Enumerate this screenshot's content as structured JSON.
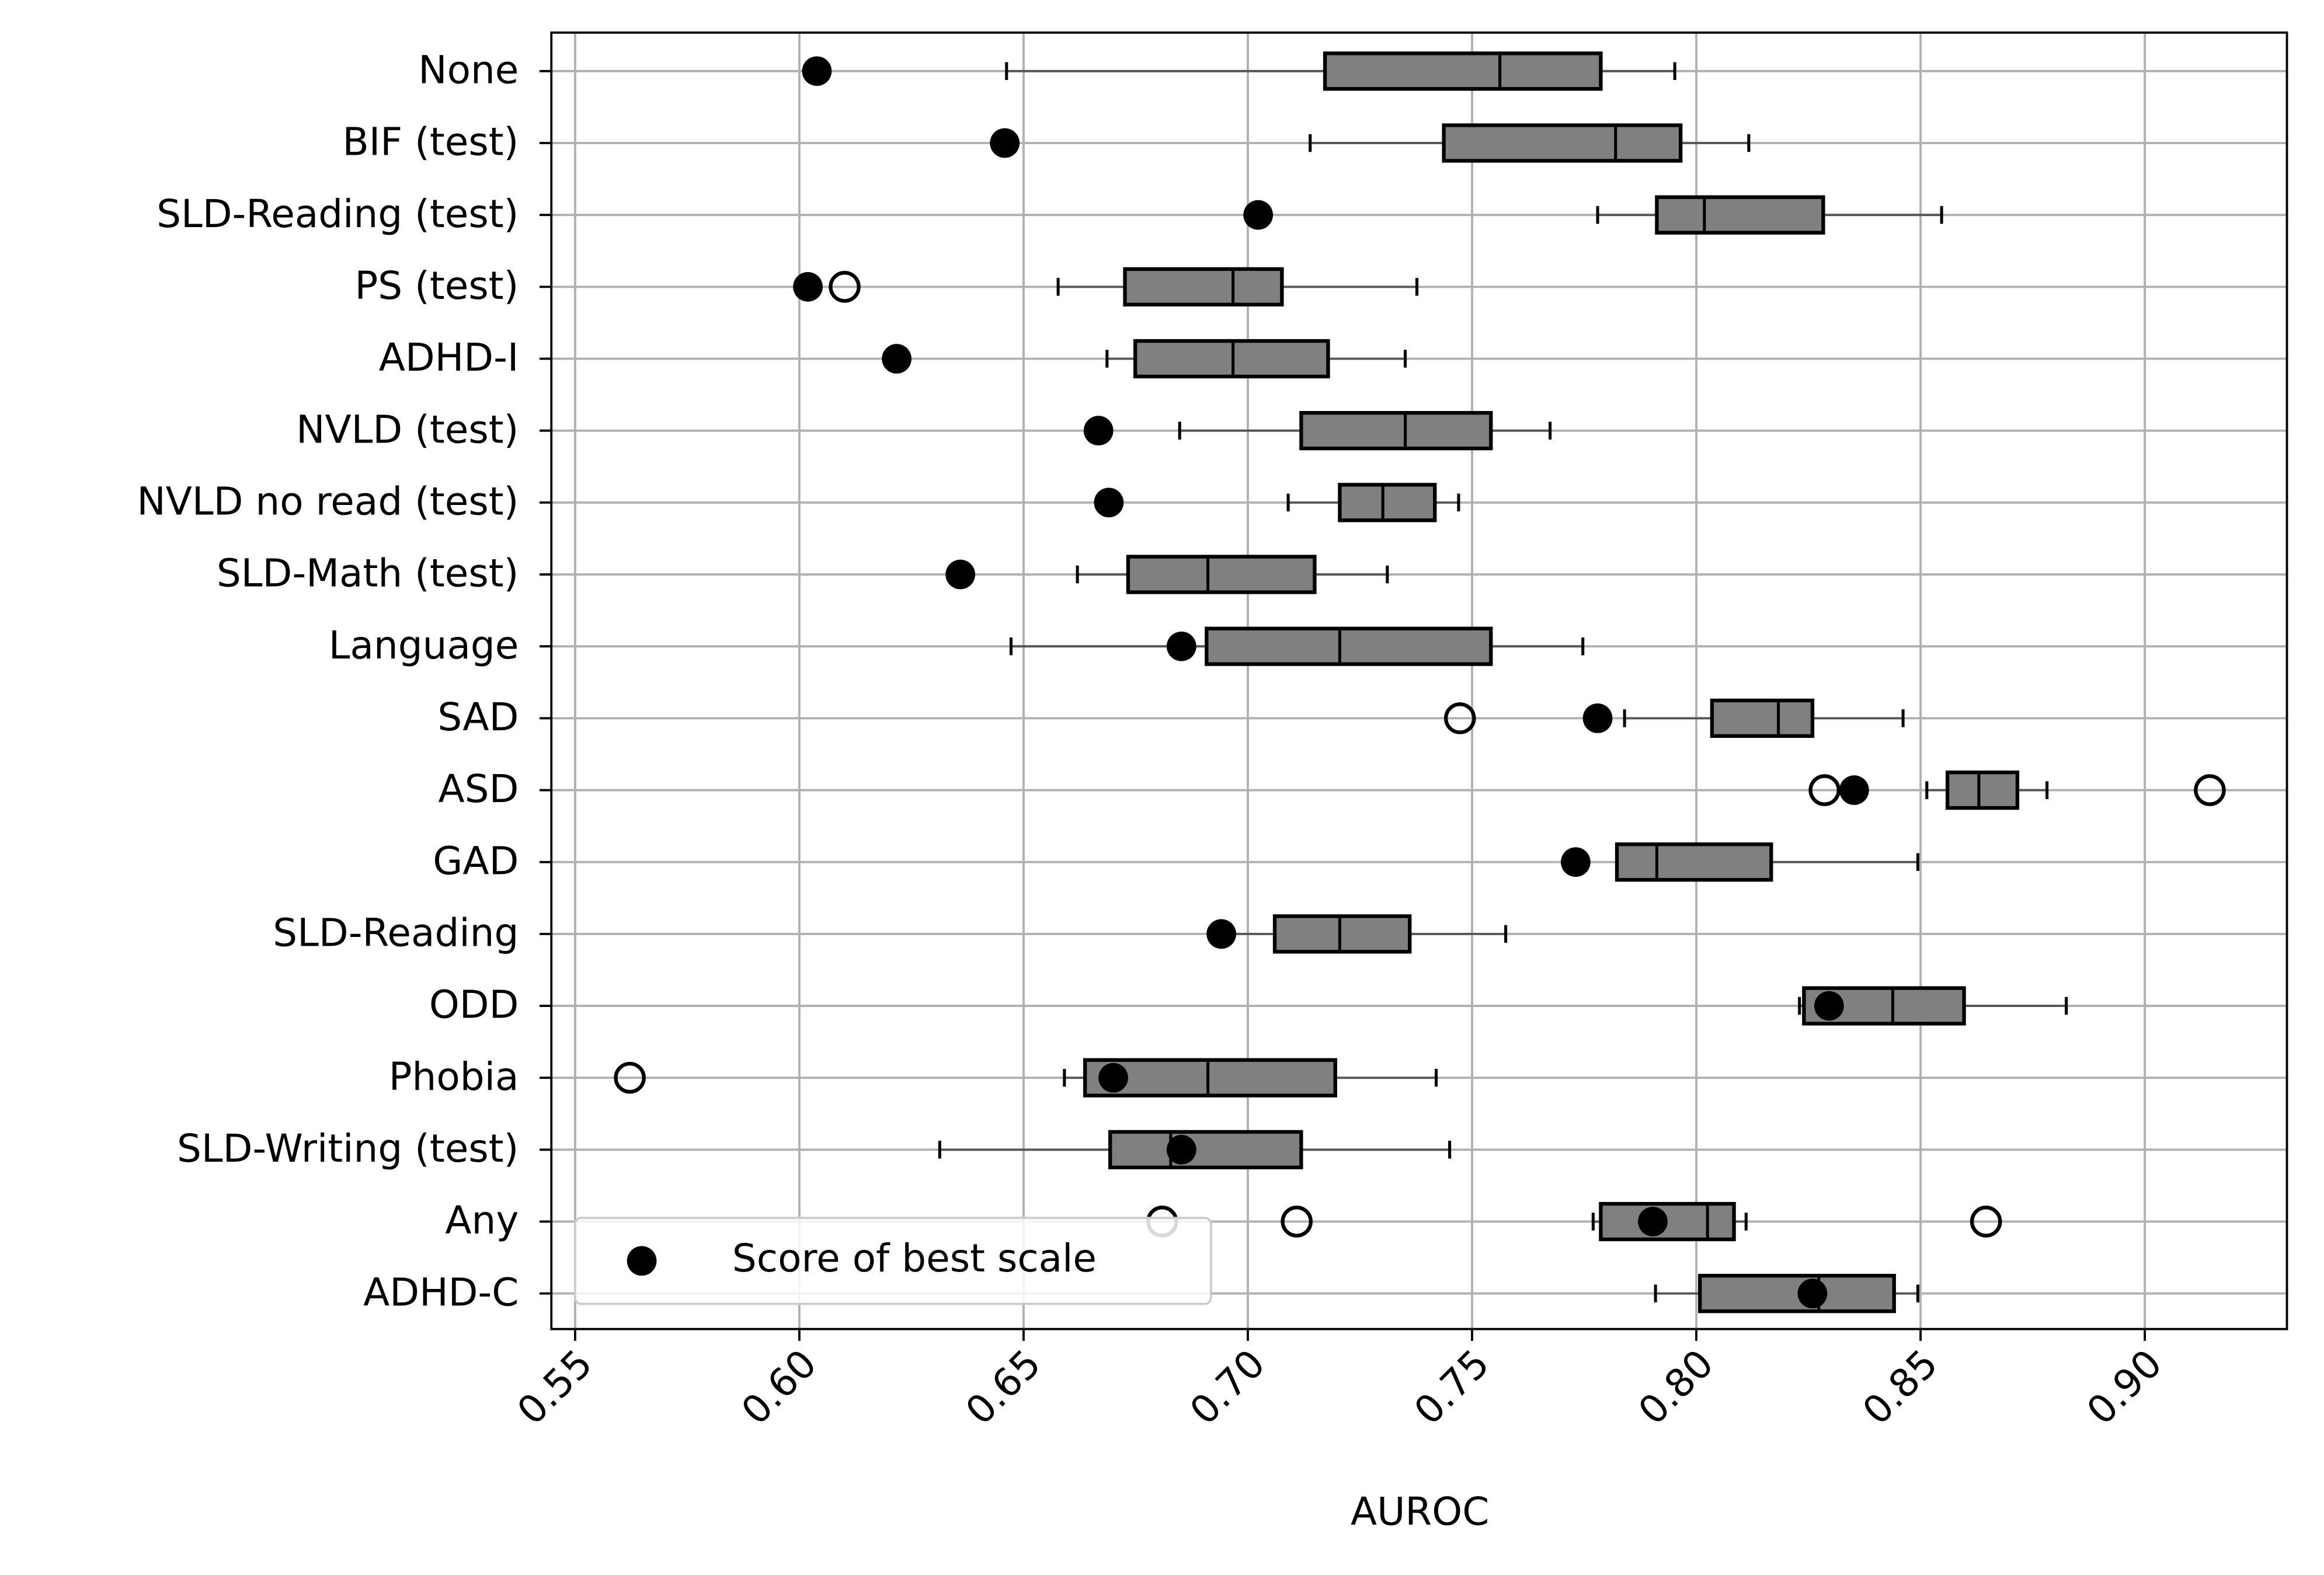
{
  "chart_data": {
    "type": "boxplot",
    "x_label": "AUROC",
    "categories": [
      "None",
      "BIF (test)",
      "SLD-Reading (test)",
      "PS (test)",
      "ADHD-I",
      "NVLD (test)",
      "NVLD no read (test)",
      "SLD-Math (test)",
      "Language",
      "SAD",
      "ASD",
      "GAD",
      "SLD-Reading",
      "ODD",
      "Phobia",
      "SLD-Writing (test)",
      "Any",
      "ADHD-C"
    ],
    "boxes": [
      {
        "low": 0.6462,
        "q1": 0.7172,
        "median": 0.7562,
        "q3": 0.7787,
        "high": 0.7952,
        "outliers": []
      },
      {
        "low": 0.7139,
        "q1": 0.7437,
        "median": 0.782,
        "q3": 0.7965,
        "high": 0.8117,
        "outliers": []
      },
      {
        "low": 0.778,
        "q1": 0.7912,
        "median": 0.8018,
        "q3": 0.8283,
        "high": 0.8547,
        "outliers": []
      },
      {
        "low": 0.6577,
        "q1": 0.6726,
        "median": 0.6967,
        "q3": 0.7076,
        "high": 0.7377,
        "outliers": [
          0.6101
        ]
      },
      {
        "low": 0.6686,
        "q1": 0.6749,
        "median": 0.6967,
        "q3": 0.7179,
        "high": 0.7351,
        "outliers": []
      },
      {
        "low": 0.6848,
        "q1": 0.7119,
        "median": 0.7351,
        "q3": 0.7542,
        "high": 0.7674,
        "outliers": []
      },
      {
        "low": 0.709,
        "q1": 0.7205,
        "median": 0.7301,
        "q3": 0.7417,
        "high": 0.747,
        "outliers": []
      },
      {
        "low": 0.662,
        "q1": 0.6733,
        "median": 0.6911,
        "q3": 0.7149,
        "high": 0.7311,
        "outliers": []
      },
      {
        "low": 0.6472,
        "q1": 0.6908,
        "median": 0.7205,
        "q3": 0.7542,
        "high": 0.7747,
        "outliers": []
      },
      {
        "low": 0.784,
        "q1": 0.8035,
        "median": 0.8183,
        "q3": 0.8259,
        "high": 0.8461,
        "outliers": [
          0.7473
        ]
      },
      {
        "low": 0.8514,
        "q1": 0.856,
        "median": 0.863,
        "q3": 0.8716,
        "high": 0.8782,
        "outliers": [
          0.8286,
          0.9145
        ]
      },
      {
        "low": 0.7823,
        "q1": 0.7823,
        "median": 0.7912,
        "q3": 0.8167,
        "high": 0.8494,
        "outliers": []
      },
      {
        "low": 0.6934,
        "q1": 0.706,
        "median": 0.7205,
        "q3": 0.7361,
        "high": 0.7575,
        "outliers": []
      },
      {
        "low": 0.823,
        "q1": 0.824,
        "median": 0.8438,
        "q3": 0.8597,
        "high": 0.8825,
        "outliers": []
      },
      {
        "low": 0.6591,
        "q1": 0.6637,
        "median": 0.6911,
        "q3": 0.7195,
        "high": 0.742,
        "outliers": [
          0.5622
        ]
      },
      {
        "low": 0.6313,
        "q1": 0.6693,
        "median": 0.6828,
        "q3": 0.7119,
        "high": 0.745,
        "outliers": []
      },
      {
        "low": 0.777,
        "q1": 0.7787,
        "median": 0.8025,
        "q3": 0.8084,
        "high": 0.8111,
        "outliers": [
          0.6809,
          0.7109,
          0.8646
        ]
      },
      {
        "low": 0.7909,
        "q1": 0.8008,
        "median": 0.8273,
        "q3": 0.8441,
        "high": 0.8494,
        "outliers": []
      }
    ],
    "box_color": "#808080",
    "best": {
      "name": "Score of best scale",
      "color": "#000000",
      "values": [
        0.6039,
        0.6458,
        0.7023,
        0.6019,
        0.6217,
        0.6667,
        0.669,
        0.6359,
        0.6852,
        0.778,
        0.8352,
        0.7731,
        0.6941,
        0.8296,
        0.67,
        0.6852,
        0.7903,
        0.8259
      ]
    },
    "xlim": [
      0.5447,
      0.9317
    ],
    "xticks": [
      0.55,
      {
        "value": 0.6,
        "label": "0.60"
      },
      0.65,
      {
        "value": 0.7,
        "label": "0.70"
      },
      0.75,
      {
        "value": 0.8,
        "label": "0.80"
      },
      0.85,
      {
        "value": 0.9,
        "label": "0.90"
      }
    ],
    "grid": true,
    "legend": "lower left"
  }
}
